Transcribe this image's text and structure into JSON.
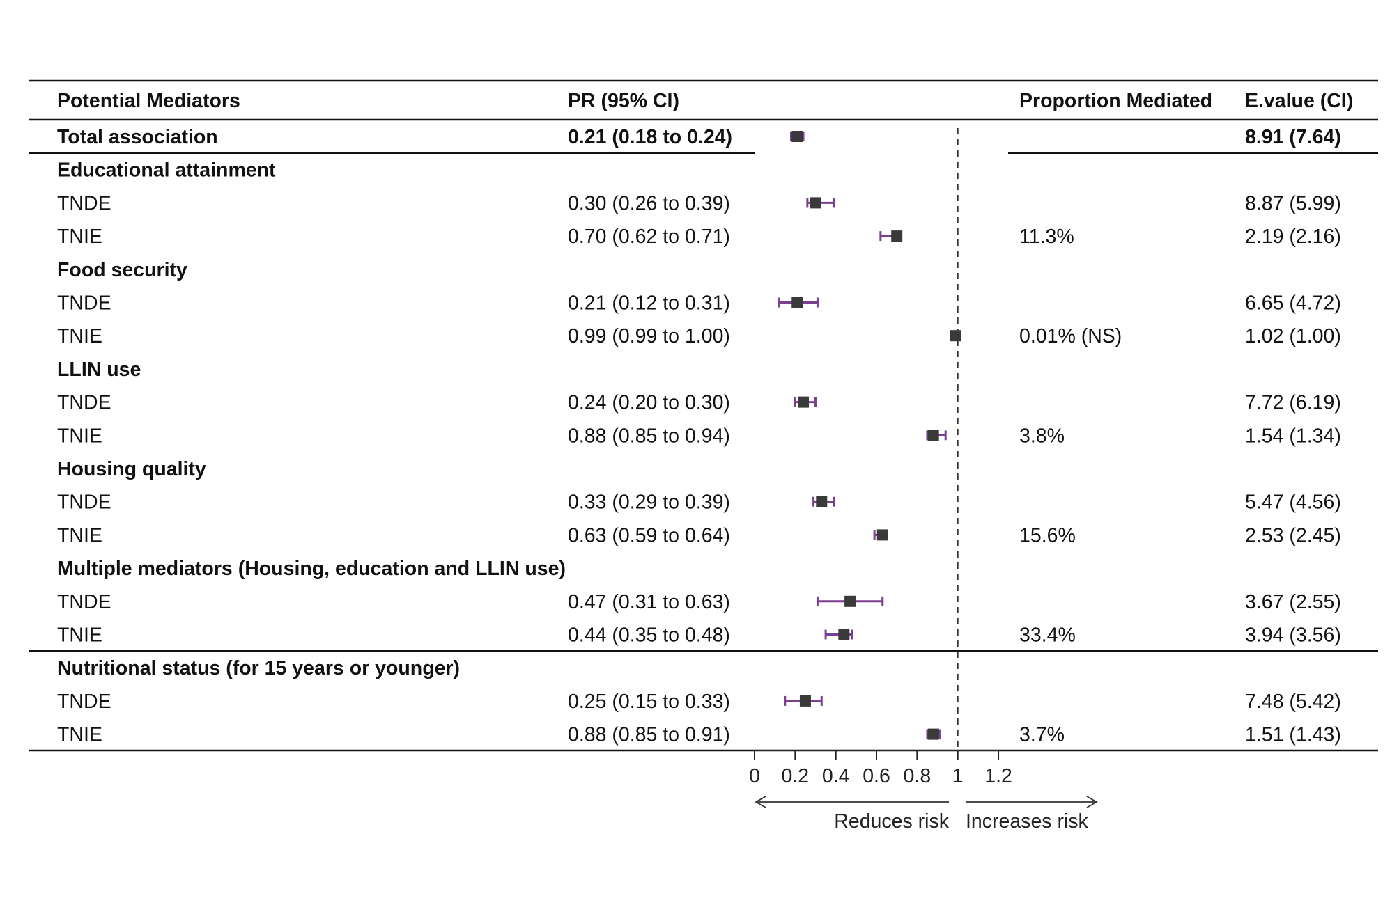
{
  "header": {
    "mediators": "Potential Mediators",
    "pr": "PR (95% CI)",
    "proportion": "Proportion Mediated",
    "evalue": "E.value (CI)"
  },
  "rows": [
    {
      "label": "Total association",
      "bold": true,
      "pr": "0.21 (0.18 to 0.24)",
      "prop": "",
      "evalue": "8.91 (7.64)"
    },
    {
      "label": "Educational attainment",
      "bold": true,
      "pr": "",
      "prop": "",
      "evalue": ""
    },
    {
      "label": "TNDE",
      "bold": false,
      "pr": "0.30 (0.26 to 0.39)",
      "prop": "",
      "evalue": "8.87  (5.99)"
    },
    {
      "label": "TNIE",
      "bold": false,
      "pr": "0.70 (0.62 to 0.71)",
      "prop": "11.3%",
      "evalue": "2.19  (2.16)"
    },
    {
      "label": "Food security",
      "bold": true,
      "pr": "",
      "prop": "",
      "evalue": ""
    },
    {
      "label": "TNDE",
      "bold": false,
      "pr": "0.21 (0.12 to 0.31)",
      "prop": "",
      "evalue": "6.65 (4.72)"
    },
    {
      "label": "TNIE",
      "bold": false,
      "pr": "0.99 (0.99 to 1.00)",
      "prop": "0.01% (NS)",
      "evalue": "1.02 (1.00)"
    },
    {
      "label": "LLIN use",
      "bold": true,
      "pr": "",
      "prop": "",
      "evalue": ""
    },
    {
      "label": "TNDE",
      "bold": false,
      "pr": "0.24 (0.20 to 0.30)",
      "prop": "",
      "evalue": "7.72  (6.19)"
    },
    {
      "label": "TNIE",
      "bold": false,
      "pr": "0.88 (0.85 to 0.94)",
      "prop": "3.8%",
      "evalue": "1.54 (1.34)"
    },
    {
      "label": "Housing quality",
      "bold": true,
      "pr": "",
      "prop": "",
      "evalue": ""
    },
    {
      "label": "TNDE",
      "bold": false,
      "pr": "0.33 (0.29 to 0.39)",
      "prop": "",
      "evalue": "5.47 (4.56)"
    },
    {
      "label": "TNIE",
      "bold": false,
      "pr": "0.63 (0.59 to 0.64)",
      "prop": "15.6%",
      "evalue": "2.53 (2.45)"
    },
    {
      "label": "Multiple mediators (Housing, education and LLIN use)",
      "bold": true,
      "pr": "",
      "prop": "",
      "evalue": ""
    },
    {
      "label": "TNDE",
      "bold": false,
      "pr": "0.47 (0.31 to 0.63)",
      "prop": "",
      "evalue": "3.67 (2.55)"
    },
    {
      "label": "TNIE",
      "bold": false,
      "pr": "0.44 (0.35 to 0.48)",
      "prop": "33.4%",
      "evalue": "3.94 (3.56)"
    },
    {
      "label": "Nutritional status (for 15 years or younger)",
      "bold": true,
      "pr": "",
      "prop": "",
      "evalue": ""
    },
    {
      "label": "TNDE",
      "bold": false,
      "pr": "0.25 (0.15 to 0.33)",
      "prop": "",
      "evalue": "7.48 (5.42)"
    },
    {
      "label": "TNIE",
      "bold": false,
      "pr": "0.88 (0.85 to 0.91)",
      "prop": "3.7%",
      "evalue": "1.51 (1.43)"
    }
  ],
  "axis": {
    "direction_left": "Reduces risk",
    "direction_right": "Increases risk"
  },
  "colors": {
    "ci_line": "#7b3f8f",
    "point": "#3a3a3a",
    "rule": "#111111"
  },
  "chart_data": {
    "type": "scatter",
    "style": "forest-plot",
    "x_ticks": [
      0,
      0.2,
      0.4,
      0.6,
      0.8,
      1,
      1.2
    ],
    "xlim": [
      0,
      1.2
    ],
    "reference_line": 1,
    "points": [
      {
        "row": 0,
        "est": 0.21,
        "lo": 0.18,
        "hi": 0.24
      },
      {
        "row": 2,
        "est": 0.3,
        "lo": 0.26,
        "hi": 0.39
      },
      {
        "row": 3,
        "est": 0.7,
        "lo": 0.62,
        "hi": 0.71
      },
      {
        "row": 5,
        "est": 0.21,
        "lo": 0.12,
        "hi": 0.31
      },
      {
        "row": 6,
        "est": 0.99,
        "lo": 0.99,
        "hi": 1.0
      },
      {
        "row": 8,
        "est": 0.24,
        "lo": 0.2,
        "hi": 0.3
      },
      {
        "row": 9,
        "est": 0.88,
        "lo": 0.85,
        "hi": 0.94
      },
      {
        "row": 11,
        "est": 0.33,
        "lo": 0.29,
        "hi": 0.39
      },
      {
        "row": 12,
        "est": 0.63,
        "lo": 0.59,
        "hi": 0.64
      },
      {
        "row": 14,
        "est": 0.47,
        "lo": 0.31,
        "hi": 0.63
      },
      {
        "row": 15,
        "est": 0.44,
        "lo": 0.35,
        "hi": 0.48
      },
      {
        "row": 17,
        "est": 0.25,
        "lo": 0.15,
        "hi": 0.33
      },
      {
        "row": 18,
        "est": 0.88,
        "lo": 0.85,
        "hi": 0.91
      }
    ]
  }
}
